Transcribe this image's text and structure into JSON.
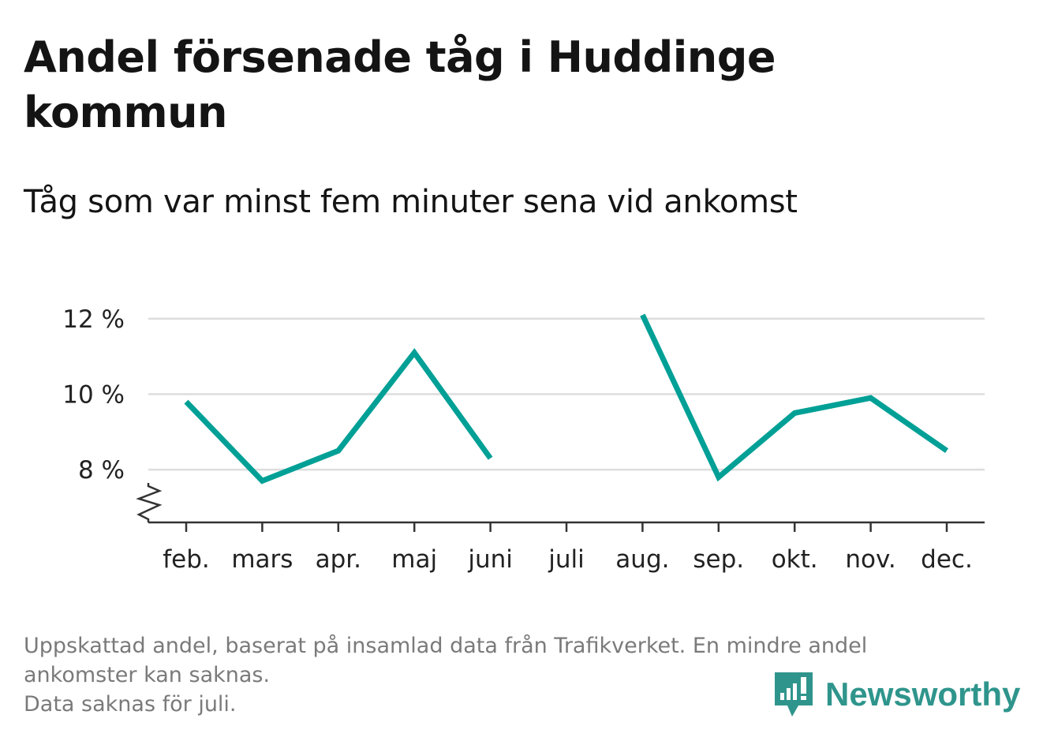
{
  "title": "Andel försenade tåg i Huddinge kommun",
  "subtitle": "Tåg som var minst fem minuter sena vid ankomst",
  "chart_data": {
    "type": "line",
    "categories": [
      "feb.",
      "mars",
      "apr.",
      "maj",
      "juni",
      "juli",
      "aug.",
      "sep.",
      "okt.",
      "nov.",
      "dec."
    ],
    "series": [
      {
        "values": [
          9.8,
          7.7,
          8.5,
          11.1,
          8.3,
          null,
          12.1,
          7.8,
          9.5,
          9.9,
          8.5
        ],
        "color": "#00a096"
      }
    ],
    "ylabel": "",
    "xlabel": "",
    "ylim": [
      6.6,
      12.5
    ],
    "yticks": [
      8,
      10,
      12
    ],
    "ytick_labels": [
      "8 %",
      "10 %",
      "12 %"
    ],
    "grid": true,
    "axis_break": true,
    "gridline_color": "#dddddd",
    "axis_color": "#333333"
  },
  "footnote": {
    "lines": [
      "Uppskattad andel, baserat på insamlad data från Trafikverket. En mindre andel",
      "ankomster kan saknas.",
      "Data saknas för juli."
    ]
  },
  "brand": {
    "name": "Newsworthy",
    "color": "#2f958c",
    "icon": "newsworthy-logo-icon"
  }
}
